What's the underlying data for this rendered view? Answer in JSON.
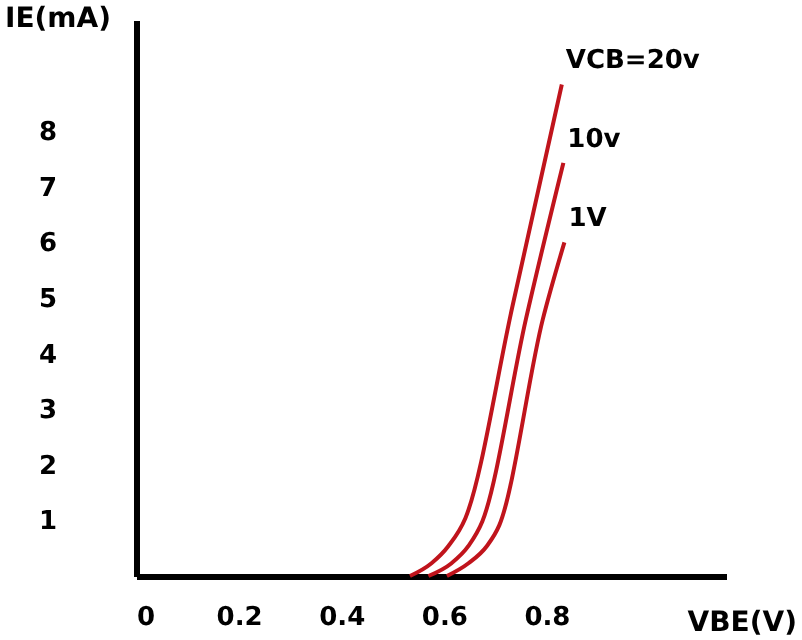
{
  "chart_data": {
    "type": "line",
    "xlabel": "VBE(V)",
    "ylabel": "IE(mA)",
    "xlim": [
      0,
      1.15
    ],
    "ylim": [
      0,
      10
    ],
    "xticks": [
      0,
      0.2,
      0.4,
      0.6,
      0.8
    ],
    "yticks": [
      1,
      2,
      3,
      4,
      5,
      6,
      7,
      8
    ],
    "grid": false,
    "marker": "none",
    "line_style": "solid",
    "series": [
      {
        "name": "VCB=20v",
        "color": "#c0141c",
        "x": [
          0.534,
          0.576,
          0.609,
          0.642,
          0.734,
          0.83
        ],
        "values": [
          0,
          0.23,
          0.54,
          1.04,
          4.86,
          8.84
        ]
      },
      {
        "name": "10v",
        "color": "#c0141c",
        "x": [
          0.57,
          0.615,
          0.648,
          0.675,
          0.76,
          0.833
        ],
        "values": [
          0,
          0.23,
          0.54,
          0.98,
          4.62,
          7.43
        ]
      },
      {
        "name": "1V",
        "color": "#c0141c",
        "x": [
          0.606,
          0.648,
          0.684,
          0.708,
          0.793,
          0.835
        ],
        "values": [
          0,
          0.23,
          0.54,
          0.91,
          4.62,
          6.0
        ]
      }
    ]
  }
}
